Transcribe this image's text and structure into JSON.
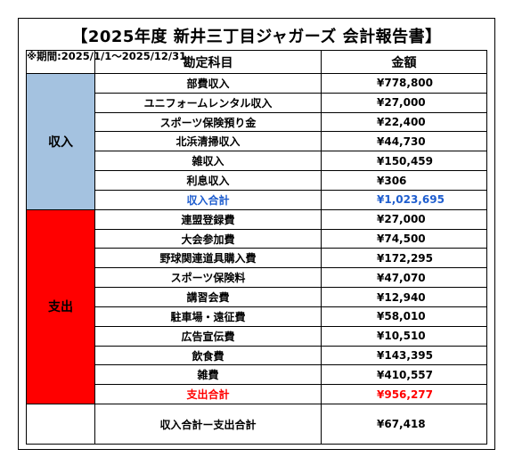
{
  "title": "【2025年度 新井三丁目ジャガーズ 会計報告書】",
  "period": "※期間:2025/1/1～2025/12/31",
  "header": {
    "item": "勘定科目",
    "amount": "金額"
  },
  "colors": {
    "income_bg": "#a4c2e0",
    "expense_bg": "#ff0000",
    "income_total": "#1f5ecf",
    "expense_total": "#ff0000"
  },
  "income": {
    "label": "収入",
    "rows": [
      {
        "item": "部費収入",
        "amount": "¥778,800"
      },
      {
        "item": "ユニフォームレンタル収入",
        "amount": "¥27,000"
      },
      {
        "item": "スポーツ保険預り金",
        "amount": "¥22,400"
      },
      {
        "item": "北浜清掃収入",
        "amount": "¥44,730"
      },
      {
        "item": "雑収入",
        "amount": "¥150,459"
      },
      {
        "item": "利息収入",
        "amount": "¥306"
      }
    ],
    "total": {
      "item": "収入合計",
      "amount": "¥1,023,695"
    }
  },
  "expense": {
    "label": "支出",
    "rows": [
      {
        "item": "連盟登録費",
        "amount": "¥27,000"
      },
      {
        "item": "大会参加費",
        "amount": "¥74,500"
      },
      {
        "item": "野球関連道具購入費",
        "amount": "¥172,295"
      },
      {
        "item": "スポーツ保険料",
        "amount": "¥47,070"
      },
      {
        "item": "講習会費",
        "amount": "¥12,940"
      },
      {
        "item": "駐車場・遠征費",
        "amount": "¥58,010"
      },
      {
        "item": "広告宣伝費",
        "amount": "¥10,510"
      },
      {
        "item": "飲食費",
        "amount": "¥143,395"
      },
      {
        "item": "雑費",
        "amount": "¥410,557"
      }
    ],
    "total": {
      "item": "支出合計",
      "amount": "¥956,277"
    }
  },
  "balance": {
    "item": "収入合計ー支出合計",
    "amount": "¥67,418"
  }
}
